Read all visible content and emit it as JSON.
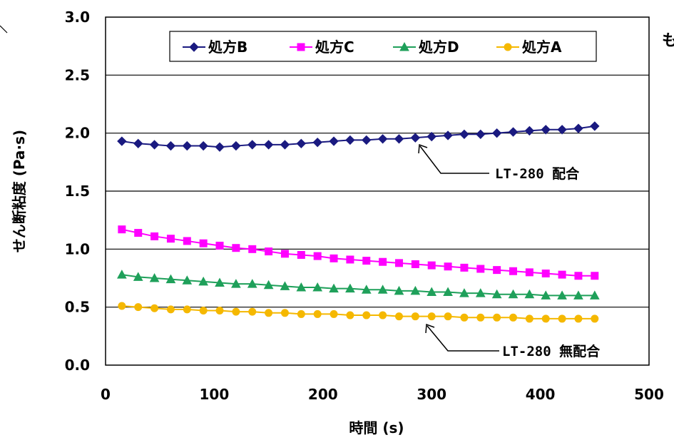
{
  "chart_data": {
    "type": "line",
    "title": "",
    "xlabel": "時間 (s)",
    "ylabel": "せん断粘度 (Pa·s)",
    "xlim": [
      0,
      500
    ],
    "ylim": [
      0.0,
      3.0
    ],
    "x_ticks": [
      "0",
      "100",
      "200",
      "300",
      "400",
      "500"
    ],
    "y_ticks": [
      "0.0",
      "0.5",
      "1.0",
      "1.5",
      "2.0",
      "2.5",
      "3.0"
    ],
    "grid": "horizontal",
    "legend_position": "top",
    "x": [
      15,
      30,
      45,
      60,
      75,
      90,
      105,
      120,
      135,
      150,
      165,
      180,
      195,
      210,
      225,
      240,
      255,
      270,
      285,
      300,
      315,
      330,
      345,
      360,
      375,
      390,
      405,
      420,
      435,
      450
    ],
    "series": [
      {
        "name": "処方B",
        "color": "#1a1a80",
        "marker": "diamond",
        "values": [
          1.93,
          1.91,
          1.9,
          1.89,
          1.89,
          1.89,
          1.88,
          1.89,
          1.9,
          1.9,
          1.9,
          1.91,
          1.92,
          1.93,
          1.94,
          1.94,
          1.95,
          1.95,
          1.96,
          1.97,
          1.98,
          1.99,
          1.99,
          2.0,
          2.01,
          2.02,
          2.03,
          2.03,
          2.04,
          2.06
        ]
      },
      {
        "name": "処方C",
        "color": "#ff00ff",
        "marker": "square",
        "values": [
          1.17,
          1.14,
          1.11,
          1.09,
          1.07,
          1.05,
          1.03,
          1.01,
          1.0,
          0.98,
          0.96,
          0.95,
          0.94,
          0.92,
          0.91,
          0.9,
          0.89,
          0.88,
          0.87,
          0.86,
          0.85,
          0.84,
          0.83,
          0.82,
          0.81,
          0.8,
          0.79,
          0.78,
          0.77,
          0.77
        ]
      },
      {
        "name": "処方D",
        "color": "#1fa05a",
        "marker": "triangle",
        "values": [
          0.78,
          0.76,
          0.75,
          0.74,
          0.73,
          0.72,
          0.71,
          0.7,
          0.7,
          0.69,
          0.68,
          0.67,
          0.67,
          0.66,
          0.66,
          0.65,
          0.65,
          0.64,
          0.64,
          0.63,
          0.63,
          0.62,
          0.62,
          0.61,
          0.61,
          0.61,
          0.6,
          0.6,
          0.6,
          0.6
        ]
      },
      {
        "name": "処方A",
        "color": "#f5b800",
        "marker": "circle",
        "values": [
          0.51,
          0.5,
          0.49,
          0.48,
          0.48,
          0.47,
          0.47,
          0.46,
          0.46,
          0.45,
          0.45,
          0.44,
          0.44,
          0.44,
          0.43,
          0.43,
          0.43,
          0.42,
          0.42,
          0.42,
          0.42,
          0.41,
          0.41,
          0.41,
          0.41,
          0.4,
          0.4,
          0.4,
          0.4,
          0.4
        ]
      }
    ],
    "annotations": [
      {
        "text": "LT-280 配合",
        "target_x": 285,
        "target_y": 1.96
      },
      {
        "text": "LT-280 無配合",
        "target_x": 295,
        "target_y": 0.42
      }
    ],
    "side_text": "も"
  }
}
